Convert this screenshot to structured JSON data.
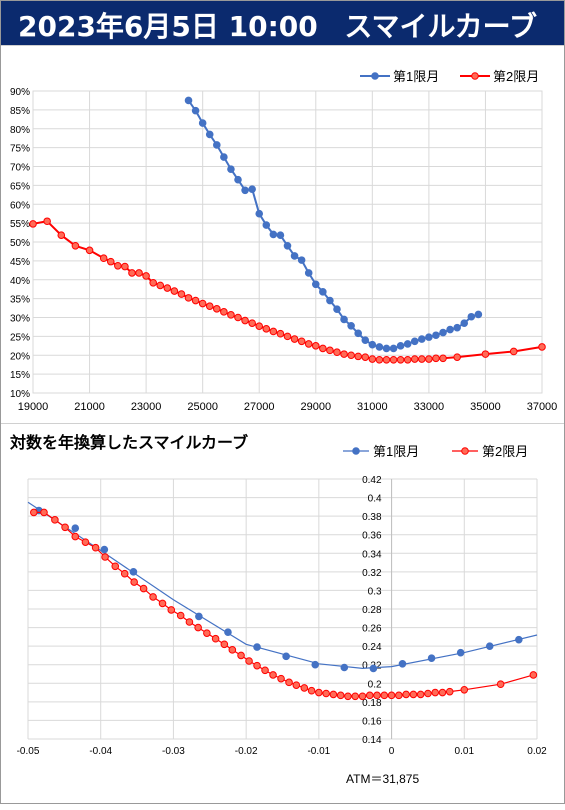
{
  "header": {
    "date_time": "2023年6月5日 10:00",
    "title": "スマイルカーブ"
  },
  "colors": {
    "header_bg": "#0b2a6e",
    "series1": "#4472c4",
    "series2": "#ff0000",
    "series2_fill": "#ff6b57"
  },
  "chart_data": [
    {
      "type": "line",
      "title": "",
      "xlabel": "",
      "ylabel": "",
      "xlim": [
        19000,
        37000
      ],
      "ylim": [
        0.1,
        0.9
      ],
      "x_ticks": [
        "19000",
        "21000",
        "23000",
        "25000",
        "27000",
        "29000",
        "31000",
        "33000",
        "35000",
        "37000"
      ],
      "y_ticks": [
        "10%",
        "15%",
        "20%",
        "25%",
        "30%",
        "35%",
        "40%",
        "45%",
        "50%",
        "55%",
        "60%",
        "65%",
        "70%",
        "75%",
        "80%",
        "85%",
        "90%"
      ],
      "grid": true,
      "legend_position": "top-right",
      "series": [
        {
          "name": "第1限月",
          "x": [
            24500,
            24750,
            25000,
            25250,
            25500,
            25750,
            26000,
            26250,
            26500,
            26750,
            27000,
            27250,
            27500,
            27750,
            28000,
            28250,
            28500,
            28750,
            29000,
            29250,
            29500,
            29750,
            30000,
            30250,
            30500,
            30750,
            31000,
            31250,
            31500,
            31750,
            32000,
            32250,
            32500,
            32750,
            33000,
            33250,
            33500,
            33750,
            34000,
            34250,
            34500,
            34750
          ],
          "y": [
            0.875,
            0.848,
            0.815,
            0.785,
            0.757,
            0.725,
            0.693,
            0.665,
            0.637,
            0.64,
            0.575,
            0.545,
            0.52,
            0.518,
            0.49,
            0.463,
            0.452,
            0.418,
            0.388,
            0.368,
            0.345,
            0.322,
            0.295,
            0.278,
            0.258,
            0.24,
            0.228,
            0.222,
            0.218,
            0.218,
            0.225,
            0.23,
            0.237,
            0.243,
            0.248,
            0.253,
            0.26,
            0.268,
            0.273,
            0.285,
            0.302,
            0.308
          ]
        },
        {
          "name": "第2限月",
          "x": [
            19000,
            19500,
            20000,
            20500,
            21000,
            21500,
            21750,
            22000,
            22250,
            22500,
            22750,
            23000,
            23250,
            23500,
            23750,
            24000,
            24250,
            24500,
            24750,
            25000,
            25250,
            25500,
            25750,
            26000,
            26250,
            26500,
            26750,
            27000,
            27250,
            27500,
            27750,
            28000,
            28250,
            28500,
            28750,
            29000,
            29250,
            29500,
            29750,
            30000,
            30250,
            30500,
            30750,
            31000,
            31250,
            31500,
            31750,
            32000,
            32250,
            32500,
            32750,
            33000,
            33250,
            33500,
            34000,
            35000,
            36000,
            37000
          ],
          "y": [
            0.548,
            0.555,
            0.518,
            0.49,
            0.478,
            0.457,
            0.448,
            0.437,
            0.435,
            0.418,
            0.418,
            0.41,
            0.392,
            0.385,
            0.378,
            0.37,
            0.362,
            0.352,
            0.345,
            0.337,
            0.33,
            0.323,
            0.315,
            0.307,
            0.3,
            0.292,
            0.285,
            0.277,
            0.27,
            0.263,
            0.257,
            0.25,
            0.243,
            0.237,
            0.23,
            0.225,
            0.218,
            0.213,
            0.208,
            0.203,
            0.2,
            0.197,
            0.195,
            0.19,
            0.188,
            0.188,
            0.188,
            0.188,
            0.188,
            0.19,
            0.19,
            0.19,
            0.192,
            0.192,
            0.195,
            0.203,
            0.21,
            0.222
          ]
        }
      ]
    },
    {
      "type": "line",
      "title": "対数を年換算したスマイルカーブ",
      "xlabel": "",
      "ylabel": "",
      "xlim": [
        -0.05,
        0.02
      ],
      "ylim": [
        0.14,
        0.42
      ],
      "x_ticks": [
        "-0.05",
        "-0.04",
        "-0.03",
        "-0.02",
        "-0.01",
        "0",
        "0.01",
        "0.02"
      ],
      "y_ticks": [
        "0.14",
        "0.16",
        "0.18",
        "0.2",
        "0.22",
        "0.24",
        "0.26",
        "0.28",
        "0.3",
        "0.32",
        "0.34",
        "0.36",
        "0.38",
        "0.4",
        "0.42"
      ],
      "grid": true,
      "legend_position": "top-right",
      "annotation": "ATM＝31,875",
      "series": [
        {
          "name": "第1限月",
          "points_x": [
            -0.0485,
            -0.0435,
            -0.0395,
            -0.0355,
            -0.0265,
            -0.0225,
            -0.0185,
            -0.0145,
            -0.0105,
            -0.0065,
            -0.0025,
            0.0015,
            0.0055,
            0.0095,
            0.0135,
            0.0175
          ],
          "points_y": [
            0.386,
            0.367,
            0.344,
            0.32,
            0.272,
            0.255,
            0.239,
            0.229,
            0.22,
            0.217,
            0.216,
            0.221,
            0.227,
            0.233,
            0.24,
            0.247
          ],
          "x": [
            -0.05,
            -0.04,
            -0.03,
            -0.02,
            -0.01,
            -0.004,
            0,
            0.01,
            0.02
          ],
          "y": [
            0.395,
            0.343,
            0.29,
            0.242,
            0.221,
            0.216,
            0.218,
            0.233,
            0.252
          ]
        },
        {
          "name": "第2限月",
          "x": [
            -0.0492,
            -0.0478,
            -0.0463,
            -0.0449,
            -0.0435,
            -0.0421,
            -0.0407,
            -0.0394,
            -0.038,
            -0.0367,
            -0.0354,
            -0.0341,
            -0.0328,
            -0.0315,
            -0.0303,
            -0.029,
            -0.0278,
            -0.0266,
            -0.0254,
            -0.0242,
            -0.023,
            -0.0219,
            -0.0207,
            -0.0196,
            -0.0185,
            -0.0174,
            -0.0163,
            -0.0152,
            -0.0141,
            -0.0131,
            -0.012,
            -0.011,
            -0.01,
            -0.009,
            -0.008,
            -0.007,
            -0.006,
            -0.005,
            -0.004,
            -0.003,
            -0.002,
            -0.001,
            0,
            0.001,
            0.002,
            0.003,
            0.004,
            0.005,
            0.006,
            0.007,
            0.008,
            0.01,
            0.015,
            0.0195
          ],
          "y": [
            0.384,
            0.384,
            0.376,
            0.368,
            0.358,
            0.352,
            0.346,
            0.336,
            0.326,
            0.318,
            0.309,
            0.302,
            0.293,
            0.286,
            0.279,
            0.273,
            0.266,
            0.26,
            0.254,
            0.248,
            0.242,
            0.236,
            0.23,
            0.224,
            0.219,
            0.214,
            0.209,
            0.205,
            0.201,
            0.198,
            0.195,
            0.192,
            0.19,
            0.189,
            0.188,
            0.187,
            0.186,
            0.186,
            0.186,
            0.187,
            0.187,
            0.187,
            0.187,
            0.187,
            0.188,
            0.188,
            0.188,
            0.189,
            0.19,
            0.19,
            0.191,
            0.193,
            0.199,
            0.209
          ]
        }
      ]
    }
  ]
}
